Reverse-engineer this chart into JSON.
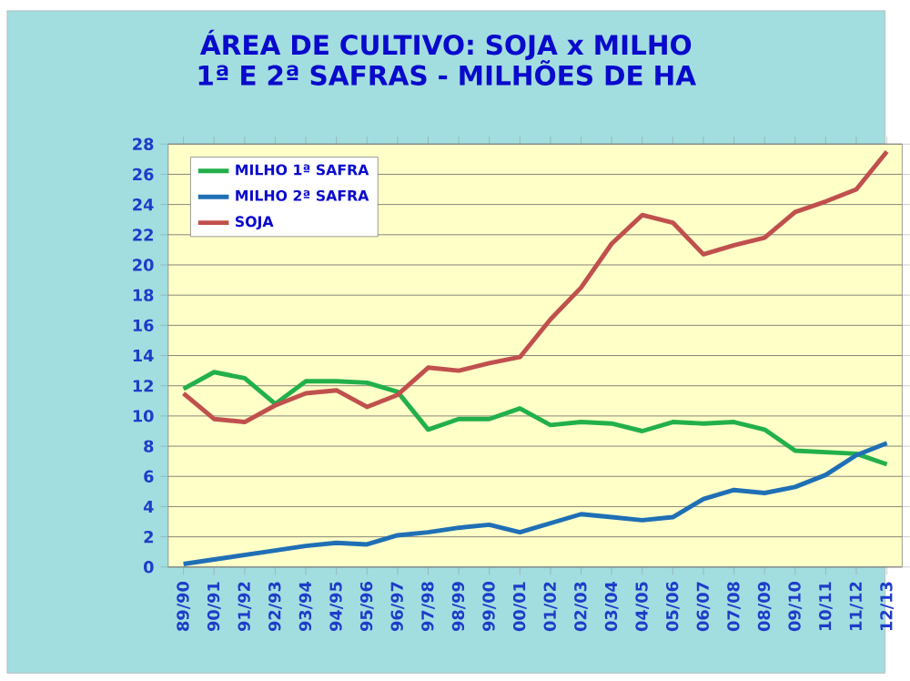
{
  "chart_data": {
    "type": "line",
    "title": "ÁREA DE CULTIVO: SOJA x MILHO\n1ª E 2ª SAFRAS - MILHÕES DE HA",
    "categories": [
      "89/90",
      "90/91",
      "91/92",
      "92/93",
      "93/94",
      "94/95",
      "95/96",
      "96/97",
      "97/98",
      "98/99",
      "99/00",
      "00/01",
      "01/02",
      "02/03",
      "03/04",
      "04/05",
      "05/06",
      "06/07",
      "07/08",
      "08/09",
      "09/10",
      "10/11",
      "11/12",
      "12/13"
    ],
    "series": [
      {
        "name": "MILHO 1ª SAFRA",
        "color": "#22b04a",
        "values": [
          11.8,
          12.9,
          12.5,
          10.8,
          12.3,
          12.3,
          12.2,
          11.6,
          9.1,
          9.8,
          9.8,
          10.5,
          9.4,
          9.6,
          9.5,
          9.0,
          9.6,
          9.5,
          9.6,
          9.1,
          7.7,
          7.6,
          7.5,
          6.8
        ]
      },
      {
        "name": "MILHO 2ª SAFRA",
        "color": "#1f6fb5",
        "values": [
          0.2,
          0.5,
          0.8,
          1.1,
          1.4,
          1.6,
          1.5,
          2.1,
          2.3,
          2.6,
          2.8,
          2.3,
          2.9,
          3.5,
          3.3,
          3.1,
          3.3,
          4.5,
          5.1,
          4.9,
          5.3,
          6.1,
          7.4,
          8.2
        ]
      },
      {
        "name": "SOJA",
        "color": "#c0504d",
        "values": [
          11.5,
          9.8,
          9.6,
          10.7,
          11.5,
          11.7,
          10.6,
          11.4,
          13.2,
          13.0,
          13.5,
          13.9,
          16.4,
          18.5,
          21.4,
          23.3,
          22.8,
          20.7,
          21.3,
          21.8,
          23.5,
          24.2,
          25.0,
          27.5
        ]
      }
    ],
    "ylim": [
      0,
      28
    ],
    "yticks": [
      0,
      2,
      4,
      6,
      8,
      10,
      12,
      14,
      16,
      18,
      20,
      22,
      24,
      26,
      28
    ],
    "grid": "y",
    "legend": "top left"
  }
}
